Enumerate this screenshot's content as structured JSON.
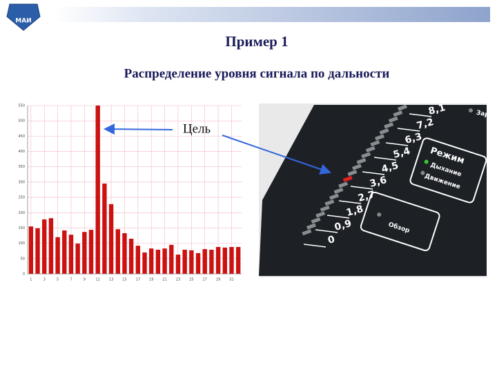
{
  "header": {
    "logo_text": "МАИ"
  },
  "title": "Пример 1",
  "subtitle": "Распределение уровня сигнала по дальности",
  "annotation": "Цель",
  "chart_data": {
    "type": "bar",
    "categories": [
      "1",
      null,
      "3",
      null,
      "5",
      null,
      "7",
      null,
      "9",
      null,
      "11",
      null,
      "13",
      null,
      "15",
      null,
      "17",
      null,
      "19",
      null,
      "21",
      null,
      "23",
      null,
      "25",
      null,
      "27",
      null,
      "29",
      null,
      "31",
      null
    ],
    "values": [
      155,
      149,
      178,
      182,
      120,
      142,
      128,
      99,
      137,
      144,
      550,
      295,
      228,
      146,
      133,
      115,
      92,
      70,
      83,
      79,
      83,
      95,
      63,
      79,
      77,
      68,
      81,
      79,
      88,
      86,
      88,
      88
    ],
    "color": "#cc1111",
    "ylim": [
      0,
      550
    ],
    "yticks": [
      0,
      50,
      100,
      150,
      200,
      250,
      300,
      350,
      400,
      450,
      500,
      550
    ],
    "grid": true
  },
  "device": {
    "scale_labels": [
      "8,1",
      "7,2",
      "6,3",
      "5,4",
      "4,5",
      "3,6",
      "2,7",
      "1,8",
      "0,9",
      "0"
    ],
    "mode_title": "Режим",
    "modes": [
      "Дыхание",
      "Движение"
    ],
    "overview": "Обзор",
    "top_label": "Зар"
  }
}
